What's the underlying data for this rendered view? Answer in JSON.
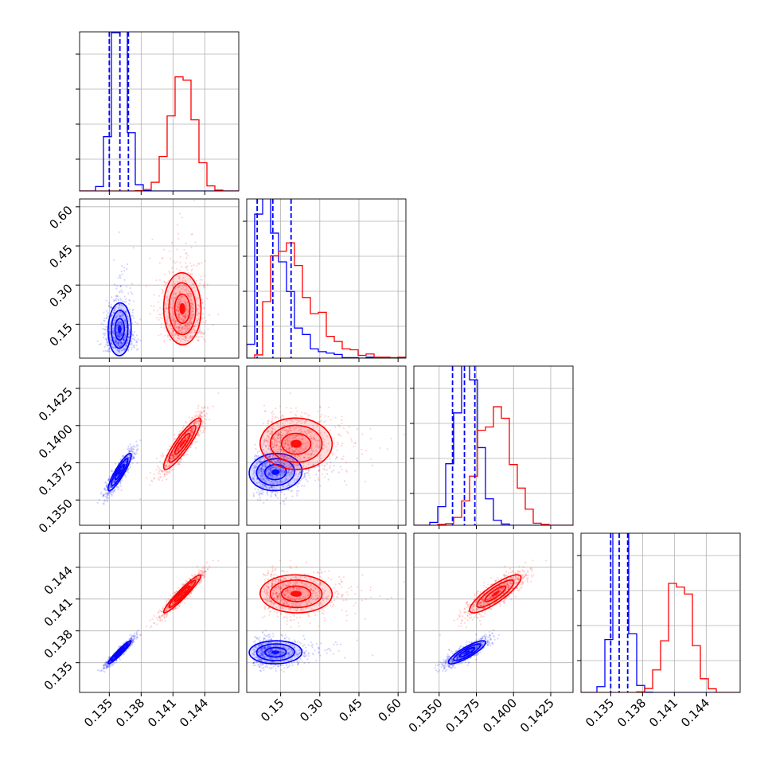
{
  "chart_data": {
    "type": "corner",
    "dimensions": 4,
    "grid": true,
    "colors": {
      "blue": "#0000ff",
      "red": "#ff0000"
    },
    "params": [
      {
        "range": [
          0.1322,
          0.1472
        ],
        "ticks": [
          0.135,
          0.138,
          0.141,
          0.144
        ],
        "tick_labels": [
          "0.135",
          "0.138",
          "0.141",
          "0.144"
        ]
      },
      {
        "range": [
          0.02,
          0.63
        ],
        "ticks": [
          0.15,
          0.3,
          0.45,
          0.6
        ],
        "tick_labels": [
          "0.15",
          "0.30",
          "0.45",
          "0.60"
        ]
      },
      {
        "range": [
          0.1333,
          0.144
        ],
        "ticks": [
          0.135,
          0.1375,
          0.14,
          0.1425
        ],
        "tick_labels": [
          "0.1350",
          "0.1375",
          "0.1400",
          "0.1425"
        ]
      },
      {
        "range": [
          0.1322,
          0.1472
        ],
        "ticks": [
          0.135,
          0.138,
          0.141,
          0.144
        ],
        "tick_labels": [
          "0.135",
          "0.138",
          "0.141",
          "0.144"
        ]
      }
    ],
    "series": [
      {
        "color": "blue",
        "mean": [
          0.136,
          0.13,
          0.1369,
          0.136
        ],
        "sd": [
          0.0007,
          0.06,
          0.0008,
          0.0007
        ],
        "quantiles": [
          [
            0.135,
            0.136,
            0.1368
          ],
          [
            0.06,
            0.12,
            0.19
          ],
          [
            0.1359,
            0.1367,
            0.1374
          ],
          [
            0.135,
            0.1358,
            0.1366
          ]
        ]
      },
      {
        "color": "red",
        "mean": [
          0.1419,
          0.21,
          0.1388,
          0.1415
        ],
        "sd": [
          0.0011,
          0.09,
          0.0011,
          0.0011
        ]
      }
    ],
    "pair_structure": [
      {
        "row": 1,
        "col": 0,
        "blue_center": [
          0.1358,
          0.11
        ],
        "red_center": [
          0.1419,
          0.19
        ]
      },
      {
        "row": 2,
        "col": 0,
        "blue_center": [
          0.136,
          0.1368
        ],
        "red_center": [
          0.1418,
          0.1387
        ]
      },
      {
        "row": 2,
        "col": 1,
        "blue_center": [
          0.11,
          0.1366
        ],
        "red_center": [
          0.19,
          0.1387
        ]
      },
      {
        "row": 3,
        "col": 0,
        "blue_center": [
          0.136,
          0.1359
        ],
        "red_center": [
          0.1417,
          0.1411
        ]
      },
      {
        "row": 3,
        "col": 1,
        "blue_center": [
          0.11,
          0.136
        ],
        "red_center": [
          0.19,
          0.1416
        ]
      },
      {
        "row": 3,
        "col": 2,
        "blue_center": [
          0.1367,
          0.1361
        ],
        "red_center": [
          0.1387,
          0.1412
        ]
      }
    ]
  }
}
